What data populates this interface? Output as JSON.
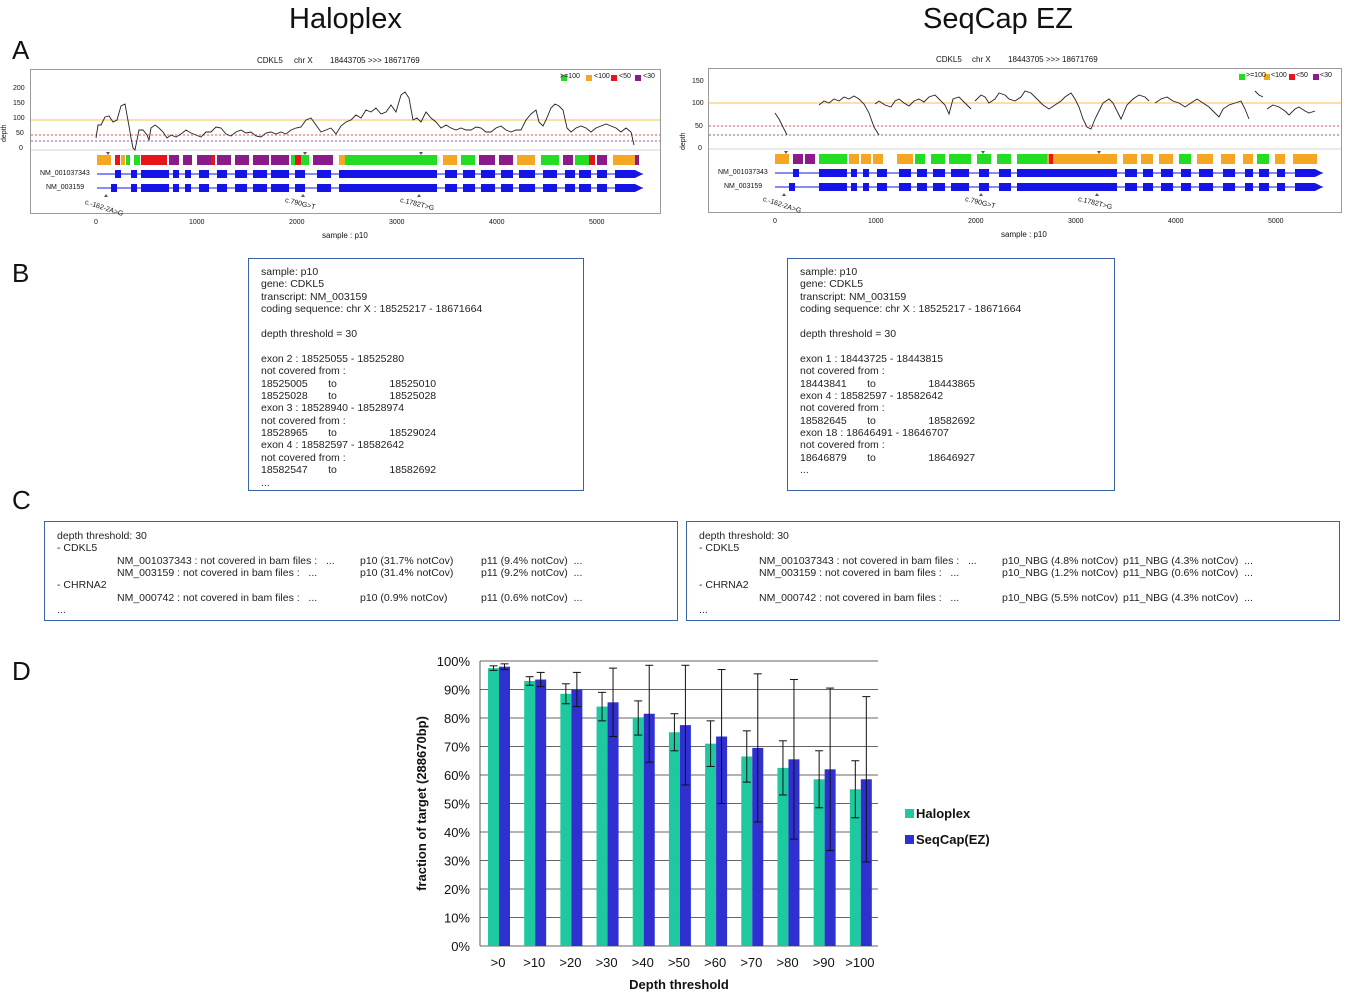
{
  "columns": {
    "left": "Haloplex",
    "right": "SeqCap EZ"
  },
  "panel_labels": {
    "a": "A",
    "b": "B",
    "c": "C",
    "d": "D"
  },
  "panel_a": {
    "left": {
      "header": {
        "gene": "CDKL5",
        "chrom": "chr X",
        "range": "18443705 >>> 18671769"
      },
      "ylabel": "depth",
      "yticks": [
        "200",
        "150",
        "100",
        "50",
        "0"
      ],
      "xticks": [
        "0",
        "1000",
        "2000",
        "3000",
        "4000",
        "5000"
      ],
      "xlabel": "sample : p10",
      "legend": [
        ">=100",
        "<100",
        "<50",
        "<30"
      ],
      "transcripts": [
        "NM_001037343",
        "NM_003159"
      ],
      "variants": [
        "c.-162-2A>G",
        "c.790G>T",
        "c.1782T>G"
      ]
    },
    "right": {
      "header": {
        "gene": "CDKL5",
        "chrom": "chr X",
        "range": "18443705 >>> 18671769"
      },
      "ylabel": "depth",
      "yticks": [
        "150",
        "100",
        "50",
        "0"
      ],
      "xticks": [
        "0",
        "1000",
        "2000",
        "3000",
        "4000",
        "5000"
      ],
      "xlabel": "sample : p10",
      "legend": [
        ">=100",
        "<100",
        "<50",
        "<30"
      ],
      "transcripts": [
        "NM_001037343",
        "NM_003159"
      ],
      "variants": [
        "c.-162-2A>G",
        "c.790G>T",
        "c.1782T>G"
      ]
    },
    "colors": {
      "ge100": "#22dd22",
      "lt100": "#f5a623",
      "lt50": "#e8141c",
      "lt30": "#8b1a8b",
      "exon": "#1414e6"
    }
  },
  "panel_b": {
    "left": [
      "sample: p10",
      "gene: CDKL5",
      "transcript: NM_003159",
      "coding sequence: chr X : 18525217 - 18671664",
      "",
      "depth threshold = 30",
      "",
      "exon 2 : 18525055 - 18525280",
      "not covered from :",
      "18525005       to                  18525010",
      "18525028       to                  18525028",
      "exon 3 : 18528940 - 18528974",
      "not covered from :",
      "18528965       to                  18529024",
      "exon 4 : 18582597 - 18582642",
      "not covered from :",
      "18582547       to                  18582692",
      "..."
    ],
    "right": [
      "sample: p10",
      "gene: CDKL5",
      "transcript: NM_003159",
      "coding sequence: chr X : 18525217 - 18671664",
      "",
      "depth threshold = 30",
      "",
      "exon 1 : 18443725 - 18443815",
      "not covered from :",
      "18443841       to                  18443865",
      "exon 4 : 18582597 - 18582642",
      "not covered from :",
      "18582645       to                  18582692",
      "exon 18 : 18646491 - 18646707",
      "not covered from :",
      "18646879       to                  18646927",
      "..."
    ]
  },
  "panel_c": {
    "left": {
      "threshold": "depth threshold: 30",
      "gene1": "- CDKL5",
      "r1": "NM_001037343 : not covered in bam files :   ...",
      "r1a": "p10 (31.7% notCov)",
      "r1b": "p11 (9.4% notCov)  ...",
      "r2": "NM_003159 : not covered in bam files :   ...",
      "r2a": "p10 (31.4% notCov)",
      "r2b": "p11 (9.2% notCov)  ...",
      "gene2": "- CHRNA2",
      "r3": "NM_000742 : not covered in bam files :   ...",
      "r3a": "p10 (0.9% notCov)",
      "r3b": "p11 (0.6% notCov)  ...",
      "more": "..."
    },
    "right": {
      "threshold": "depth threshold: 30",
      "gene1": "- CDKL5",
      "r1": "NM_001037343 : not covered in bam files :   ...",
      "r1a": "p10_NBG (4.8% notCov)",
      "r1b": "p11_NBG (4.3% notCov)  ...",
      "r2": "NM_003159 : not covered in bam files :   ...",
      "r2a": "p10_NBG (1.2% notCov)",
      "r2b": "p11_NBG (0.6% notCov)  ...",
      "gene2": "- CHRNA2",
      "r3": "NM_000742 : not covered in bam files :   ...",
      "r3a": "p10_NBG (5.5% notCov)",
      "r3b": "p11_NBG (4.3% notCov)  ...",
      "more": "..."
    }
  },
  "chart_data": {
    "type": "bar",
    "categories": [
      ">0",
      ">10",
      ">20",
      ">30",
      ">40",
      ">50",
      ">60",
      ">70",
      ">80",
      ">90",
      ">100"
    ],
    "series": [
      {
        "name": "Haloplex",
        "color": "#1fc9a0",
        "values": [
          97.5,
          93,
          88.5,
          84,
          80,
          75,
          71,
          66.5,
          62.5,
          58.5,
          55
        ],
        "error": [
          0.8,
          1.5,
          3.5,
          5,
          6,
          6.5,
          8,
          9,
          9.5,
          10,
          10
        ]
      },
      {
        "name": "SeqCap(EZ)",
        "color": "#3030d0",
        "values": [
          98,
          93.5,
          90,
          85.5,
          81.5,
          77.5,
          73.5,
          69.5,
          65.5,
          62,
          58.5
        ],
        "error": [
          1,
          2.5,
          6,
          12,
          17,
          21,
          23.5,
          26,
          28,
          28.5,
          29
        ]
      }
    ],
    "ylabel": "fraction of target (288670bp)",
    "xlabel": "Depth threshold",
    "ylim": [
      0,
      100
    ],
    "yticks": [
      "0%",
      "10%",
      "20%",
      "30%",
      "40%",
      "50%",
      "60%",
      "70%",
      "80%",
      "90%",
      "100%"
    ],
    "grid": true,
    "legend_position": "right"
  }
}
